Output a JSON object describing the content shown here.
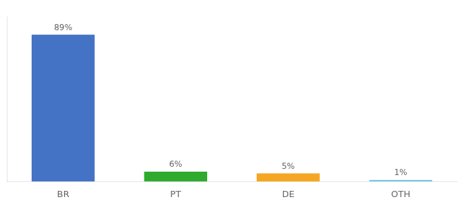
{
  "chart_data": {
    "type": "bar",
    "categories": [
      "BR",
      "PT",
      "DE",
      "OTH"
    ],
    "values": [
      89,
      6,
      5,
      1
    ],
    "value_labels": [
      "89%",
      "6%",
      "5%",
      "1%"
    ],
    "colors": [
      "#4472c4",
      "#2eab2e",
      "#f5a623",
      "#7ec8e3"
    ],
    "ylim": [
      0,
      100
    ],
    "grid": false,
    "data_labels": true,
    "tick_labels": "x"
  }
}
